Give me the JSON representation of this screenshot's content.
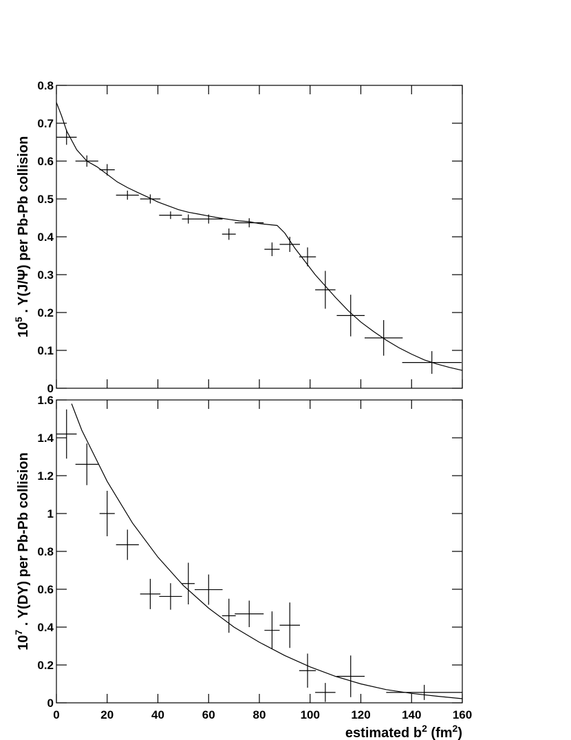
{
  "chart_data": [
    {
      "type": "errorbar",
      "ylabel_parts": [
        "10",
        "5",
        " . Y(J/Ψ) per Pb-Pb collision"
      ],
      "xlim": [
        0,
        160
      ],
      "ylim": [
        0,
        0.8
      ],
      "yticks": [
        0,
        0.1,
        0.2,
        0.3,
        0.4,
        0.5,
        0.6,
        0.7,
        0.8
      ],
      "x": [
        4,
        12,
        20,
        28,
        37,
        45,
        52,
        60,
        68,
        76,
        85,
        92,
        99,
        106,
        116,
        129,
        148
      ],
      "xerr": [
        4,
        4.5,
        3,
        4.5,
        4,
        4.5,
        2.5,
        5.5,
        2.7,
        5.7,
        3,
        4,
        3.3,
        4,
        5.5,
        7.5,
        11.7
      ],
      "values": [
        0.663,
        0.6,
        0.577,
        0.51,
        0.5,
        0.457,
        0.447,
        0.447,
        0.407,
        0.437,
        0.367,
        0.38,
        0.347,
        0.26,
        0.192,
        0.133,
        0.068
      ],
      "yerr": [
        0.02,
        0.015,
        0.015,
        0.012,
        0.012,
        0.01,
        0.012,
        0.012,
        0.015,
        0.012,
        0.018,
        0.02,
        0.025,
        0.05,
        0.055,
        0.047,
        0.03
      ],
      "curve": {
        "x": [
          0,
          2,
          4,
          8,
          12,
          16,
          20,
          24,
          28,
          32,
          36,
          40,
          44,
          48,
          52,
          56,
          60,
          64,
          68,
          72,
          76,
          80,
          84,
          87,
          90,
          94,
          98,
          102,
          106,
          110,
          115,
          120,
          125,
          130,
          135,
          140,
          145,
          150,
          155,
          160
        ],
        "values": [
          0.755,
          0.72,
          0.68,
          0.63,
          0.6,
          0.585,
          0.565,
          0.545,
          0.53,
          0.517,
          0.505,
          0.492,
          0.482,
          0.472,
          0.465,
          0.46,
          0.455,
          0.45,
          0.446,
          0.442,
          0.44,
          0.435,
          0.432,
          0.43,
          0.41,
          0.37,
          0.335,
          0.3,
          0.27,
          0.24,
          0.205,
          0.175,
          0.15,
          0.127,
          0.107,
          0.09,
          0.075,
          0.064,
          0.055,
          0.047
        ]
      }
    },
    {
      "type": "errorbar",
      "ylabel_parts": [
        "10",
        "7",
        " . Y(DY) per Pb-Pb collision"
      ],
      "xlabel_parts": [
        "estimated b",
        "2",
        " (fm",
        "2",
        ")"
      ],
      "xlim": [
        0,
        160
      ],
      "ylim": [
        0,
        1.6
      ],
      "xticks": [
        0,
        20,
        40,
        60,
        80,
        100,
        120,
        140,
        160
      ],
      "yticks": [
        0,
        0.2,
        0.4,
        0.6,
        0.8,
        1,
        1.2,
        1.4,
        1.6
      ],
      "x": [
        4,
        12,
        20,
        28,
        37,
        45,
        52,
        60,
        68,
        76,
        85,
        92,
        99,
        106,
        116,
        145
      ],
      "xerr": [
        4,
        4.5,
        3,
        4.5,
        4,
        4.5,
        2.5,
        5.5,
        2.7,
        5.7,
        3,
        4,
        3.3,
        4,
        5.5,
        15
      ],
      "values": [
        1.42,
        1.26,
        1.0,
        0.835,
        0.575,
        0.562,
        0.63,
        0.598,
        0.46,
        0.47,
        0.383,
        0.41,
        0.17,
        0.055,
        0.14,
        0.055
      ],
      "yerr": [
        0.13,
        0.11,
        0.12,
        0.08,
        0.08,
        0.07,
        0.11,
        0.08,
        0.09,
        0.07,
        0.1,
        0.12,
        0.09,
        0.05,
        0.11,
        0.04
      ],
      "curve": {
        "x": [
          6,
          10,
          20,
          30,
          40,
          50,
          60,
          70,
          80,
          90,
          100,
          110,
          120,
          130,
          140,
          150,
          160
        ],
        "values": [
          1.58,
          1.44,
          1.17,
          0.95,
          0.77,
          0.62,
          0.5,
          0.4,
          0.32,
          0.25,
          0.19,
          0.14,
          0.1,
          0.07,
          0.05,
          0.035,
          0.022
        ]
      }
    }
  ]
}
